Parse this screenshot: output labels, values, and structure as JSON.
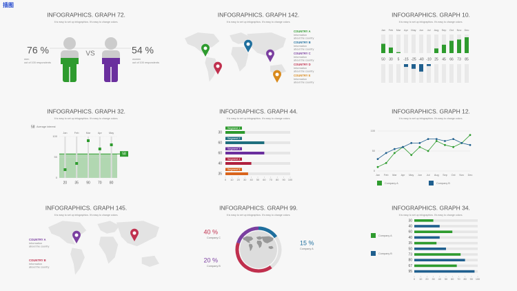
{
  "corner": "插图",
  "panels": [
    {
      "title": "INFOGRAPHICS. GRAPH 72.",
      "subtitle": "It is easy to set up infographics. It's easy to change colors.",
      "left": {
        "value": "76 %",
        "label": "men",
        "note": "out of 100 respondents",
        "color": "#2e9b2e"
      },
      "vs": "VS",
      "right": {
        "value": "54 %",
        "label": "women",
        "note": "out of 100 respondents",
        "color": "#6a2f9e"
      }
    },
    {
      "title": "INFOGRAPHICS. GRAPH 142.",
      "subtitle": "It is easy to set up infographics. It's easy to change colors.",
      "legend": [
        {
          "name": "COUNTRY A",
          "color": "#2e9b2e",
          "info": [
            "Information",
            "about the country"
          ]
        },
        {
          "name": "COUNTRY B",
          "color": "#1f6f9e",
          "info": [
            "Information",
            "about the country"
          ]
        },
        {
          "name": "COUNTRY C",
          "color": "#7b3fa0",
          "info": [
            "Information",
            "about the country"
          ]
        },
        {
          "name": "COUNTRY D",
          "color": "#c0304e",
          "info": [
            "Information",
            "about the country"
          ]
        },
        {
          "name": "COUNTRY E",
          "color": "#d98a1c",
          "info": [
            "Information",
            "about the country"
          ]
        }
      ]
    },
    {
      "title": "INFOGRAPHICS. GRAPH 10.",
      "subtitle": "It is easy to set up infographics. It's easy to change colors.",
      "categories": [
        "Jan",
        "Feb",
        "Mar",
        "Apr",
        "May",
        "Jun",
        "Jul",
        "Aug",
        "Sep",
        "Oct",
        "Nov",
        "Dec"
      ],
      "values": [
        50,
        30,
        5,
        -15,
        -25,
        -40,
        -10,
        25,
        45,
        66,
        73,
        85
      ],
      "pos_color": "#2e9b2e",
      "neg_color": "#1f5f8e",
      "vmax": 100
    },
    {
      "title": "INFOGRAPHICS. GRAPH 32.",
      "subtitle": "It is easy to set up infographics. It's easy to change colors.",
      "average": 58,
      "average_label": "Average interest",
      "categories": [
        "Jan",
        "Feb",
        "Mar",
        "Apr",
        "May"
      ],
      "values": [
        20,
        35,
        90,
        70,
        80
      ],
      "yticks": [
        0,
        50,
        100
      ],
      "color": "#2e9b2e"
    },
    {
      "title": "INFOGRAPHICS. GRAPH 44.",
      "subtitle": "It is easy to set up infographics. It's easy to change colors.",
      "series": [
        {
          "name": "Segment 1",
          "value": 30,
          "color": "#2e9b2e"
        },
        {
          "name": "Segment 2",
          "value": 60,
          "color": "#1f6f7e"
        },
        {
          "name": "Segment 3",
          "value": 60,
          "color": "#6a2f9e"
        },
        {
          "name": "Segment 4",
          "value": 40,
          "color": "#b0203e"
        },
        {
          "name": "Segment 5",
          "value": 35,
          "color": "#d9641c"
        }
      ],
      "xticks": [
        0,
        10,
        20,
        30,
        40,
        50,
        60,
        70,
        80,
        90,
        100
      ]
    },
    {
      "title": "INFOGRAPHICS. GRAPH 12.",
      "subtitle": "It is easy to set up infographics. It's easy to change colors.",
      "categories": [
        "Jan",
        "Feb",
        "Mar",
        "Apr",
        "May",
        "Jun",
        "Jul",
        "Aug",
        "Sep",
        "Oct",
        "Nov",
        "Dec"
      ],
      "yticks": [
        0,
        50,
        100
      ],
      "series": [
        {
          "name": "Company A",
          "color": "#2e9b2e",
          "values": [
            10,
            20,
            45,
            60,
            40,
            60,
            50,
            75,
            65,
            60,
            70,
            90
          ]
        },
        {
          "name": "Company B",
          "color": "#1f5f8e",
          "values": [
            30,
            45,
            55,
            60,
            70,
            70,
            80,
            80,
            75,
            80,
            70,
            65
          ]
        }
      ]
    },
    {
      "title": "INFOGRAPHICS. GRAPH 145.",
      "subtitle": "It is easy to set up infographics. It's easy to change colors.",
      "legend": [
        {
          "name": "COUNTRY A",
          "color": "#7b3fa0",
          "info": [
            "Information",
            "about the country"
          ]
        },
        {
          "name": "COUNTRY B",
          "color": "#c0304e",
          "info": [
            "Information",
            "about the country"
          ]
        }
      ]
    },
    {
      "title": "INFOGRAPHICS. GRAPH 99.",
      "subtitle": "It is easy to set up infographics. It's easy to change colors.",
      "segments": [
        {
          "name": "Company A",
          "value": 15,
          "label": "15 %",
          "color": "#1f6f9e"
        },
        {
          "name": "Company C",
          "value": 40,
          "label": "40 %",
          "color": "#c0304e"
        },
        {
          "name": "Company B",
          "value": 20,
          "label": "20 %",
          "color": "#7b3fa0"
        }
      ]
    },
    {
      "title": "INFOGRAPHICS. GRAPH 34.",
      "subtitle": "It is easy to set up infographics. It's easy to change colors.",
      "series": [
        {
          "name": "Company A",
          "color": "#2e9b2e"
        },
        {
          "name": "Company B",
          "color": "#1f5f8e"
        }
      ],
      "values": [
        30,
        40,
        60,
        40,
        35,
        50,
        73,
        80,
        67,
        95
      ],
      "xticks": [
        0,
        10,
        20,
        30,
        40,
        50,
        60,
        70,
        80,
        90,
        100
      ]
    }
  ]
}
